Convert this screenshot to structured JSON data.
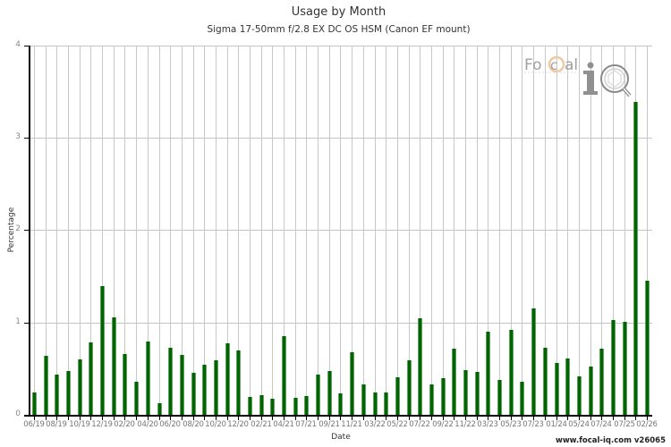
{
  "header": {
    "title": "Usage by Month",
    "subtitle": "Sigma 17-50mm f/2.8 EX DC OS HSM (Canon EF mount)"
  },
  "axes": {
    "xlabel": "Date",
    "ylabel": "Percentage"
  },
  "logo": {
    "text_left": "FoCal",
    "text_right": "iQ",
    "accent_color": "#f0a850"
  },
  "footer": {
    "text": "www.focal-iq.com  v26065"
  },
  "colors": {
    "bar": "#006400",
    "bar_edge": "#5fa05f",
    "grid": "#c8c8c8"
  },
  "chart_data": {
    "type": "bar",
    "title": "Usage by Month",
    "subtitle": "Sigma 17-50mm f/2.8 EX DC OS HSM (Canon EF mount)",
    "xlabel": "Date",
    "ylabel": "Percentage",
    "ylim": [
      0,
      4
    ],
    "yticks": [
      0,
      1,
      2,
      3,
      4
    ],
    "grid": true,
    "legend": null,
    "categories": [
      "06/19",
      "",
      "08/19",
      "",
      "10/19",
      "",
      "12/19",
      "",
      "02/20",
      "",
      "04/20",
      "",
      "06/20",
      "",
      "08/20",
      "",
      "10/20",
      "",
      "12/20",
      "",
      "02/21",
      "",
      "04/21",
      "",
      "07/21",
      "",
      "09/21",
      "",
      "11/21",
      "",
      "03/22",
      "",
      "05/22",
      "",
      "07/22",
      "",
      "09/22",
      "",
      "11/22",
      "",
      "03/23",
      "",
      "05/23",
      "",
      "07/23",
      "",
      "01/24",
      "",
      "05/24",
      "",
      "07/24",
      "",
      "07/25",
      "",
      "02/26"
    ],
    "values": [
      0.24,
      0.64,
      0.44,
      0.47,
      0.6,
      0.78,
      1.39,
      1.05,
      0.66,
      0.36,
      0.79,
      0.13,
      0.73,
      0.65,
      0.45,
      0.54,
      0.59,
      0.77,
      0.7,
      0.19,
      0.21,
      0.17,
      0.85,
      0.18,
      0.2,
      0.44,
      0.47,
      0.23,
      0.68,
      0.33,
      0.24,
      0.24,
      0.41,
      0.59,
      1.04,
      0.33,
      0.4,
      0.72,
      0.48,
      0.46,
      0.9,
      0.38,
      0.92,
      0.36,
      1.15,
      0.73,
      0.56,
      0.61,
      0.42,
      0.52,
      0.72,
      1.03,
      1.01,
      3.39,
      1.45
    ]
  }
}
